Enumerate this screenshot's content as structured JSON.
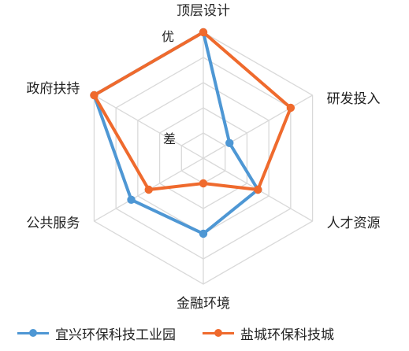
{
  "chart_data": {
    "type": "radar",
    "axes": [
      "顶层设计",
      "研发投入",
      "人才资源",
      "金融环境",
      "公共服务",
      "政府扶持"
    ],
    "levels": 5,
    "level_labels": {
      "top": "优",
      "bottom": "差"
    },
    "range": [
      0,
      5
    ],
    "grid": true,
    "legend_position": "bottom",
    "series": [
      {
        "name": "宜兴环保科技工业园",
        "color": "#4e97d4",
        "values": [
          5,
          1.2,
          2.5,
          3,
          3.3,
          5
        ]
      },
      {
        "name": "盐城环保科技城",
        "color": "#ef6a2d",
        "values": [
          5,
          4,
          2.5,
          1,
          2.5,
          5
        ]
      }
    ]
  }
}
